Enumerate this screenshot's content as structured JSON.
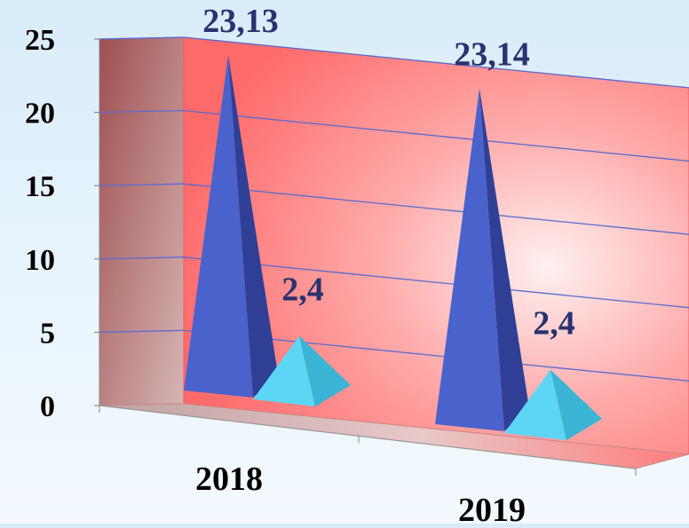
{
  "chart_data": {
    "type": "bar",
    "style": "3d-pyramid",
    "categories": [
      "2018",
      "2019"
    ],
    "series": [
      {
        "values": [
          23.13,
          23.14
        ],
        "labels": [
          "23,13",
          "23,14"
        ],
        "color": "#4a62cc"
      },
      {
        "values": [
          2.4,
          2.4
        ],
        "labels": [
          "2,4",
          "2,4"
        ],
        "color": "#5dd6f5"
      }
    ],
    "ylim": [
      0,
      25
    ],
    "yticks": [
      "0",
      "5",
      "10",
      "15",
      "20",
      "25"
    ],
    "grid": true,
    "colors": {
      "back_wall": "#ff7a7a",
      "side_wall": "#b86c6c",
      "floor": "#c9a9a9",
      "gridline": "#5a6ad0",
      "label_text": "#2a3270"
    }
  }
}
